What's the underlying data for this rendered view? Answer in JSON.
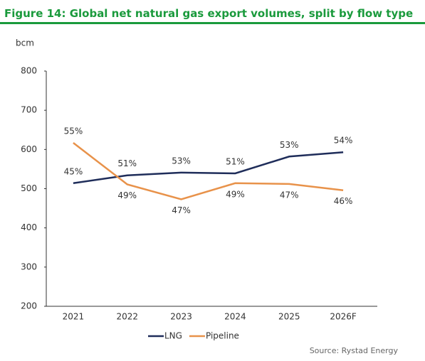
{
  "chart_data": {
    "type": "line",
    "title": "Figure 14: Global net natural gas export volumes, split by flow type",
    "y_label": "bcm",
    "source": "Source: Rystad Energy",
    "categories": [
      "2021",
      "2022",
      "2023",
      "2024",
      "2025",
      "2026F"
    ],
    "series": [
      {
        "name": "LNG",
        "color": "#1f2d5a",
        "values": [
          514,
          534,
          541,
          539,
          582,
          593
        ],
        "labels": [
          "45%",
          "51%",
          "53%",
          "51%",
          "53%",
          "54%"
        ]
      },
      {
        "name": "Pipeline",
        "color": "#e8924a",
        "values": [
          617,
          511,
          473,
          514,
          512,
          496
        ],
        "labels": [
          "55%",
          "49%",
          "47%",
          "49%",
          "47%",
          "46%"
        ]
      }
    ],
    "ylim": [
      200,
      800
    ],
    "yticks": [
      200,
      300,
      400,
      500,
      600,
      700,
      800
    ],
    "grid": false
  }
}
